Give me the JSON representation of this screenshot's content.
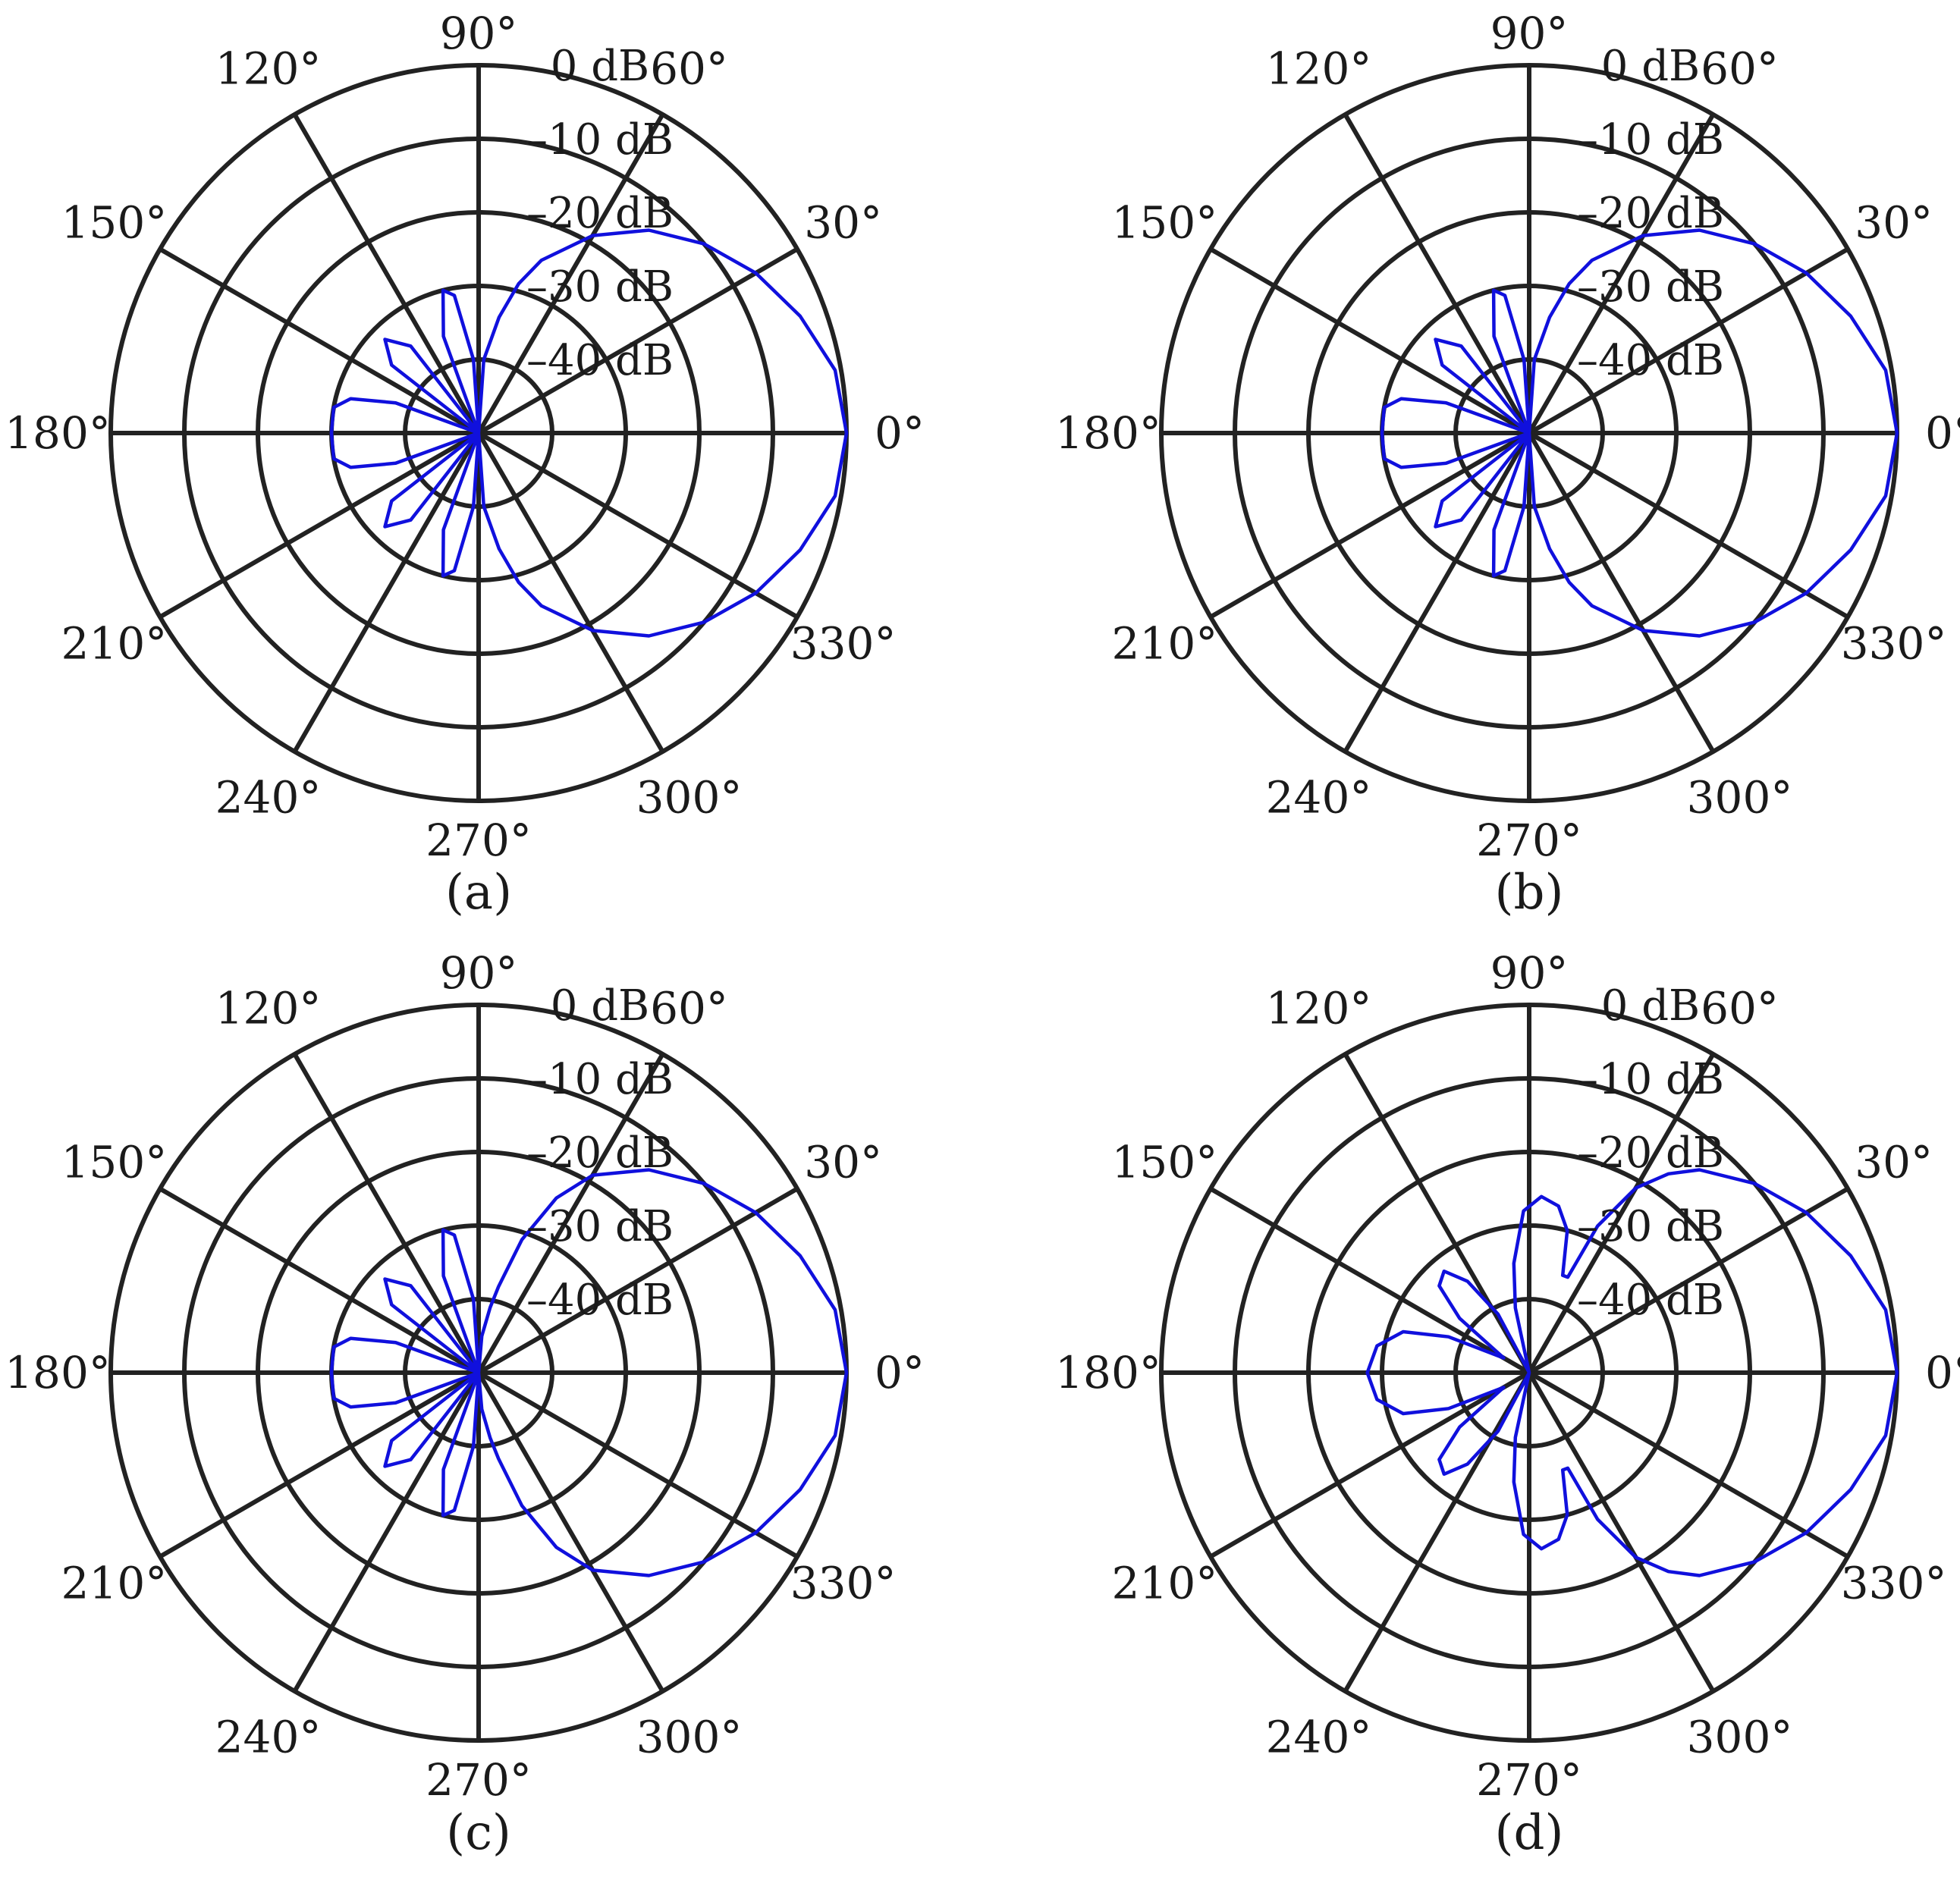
{
  "chart_data": [
    {
      "type": "line",
      "coordinate_system": "polar",
      "caption": "(a)",
      "angle_ticks": [
        "0°",
        "30°",
        "60°",
        "90°",
        "120°",
        "150°",
        "180°",
        "210°",
        "240°",
        "270°",
        "300°",
        "330°"
      ],
      "radial_ticks": [
        "0 dB",
        "–10 dB",
        "–20 dB",
        "–30 dB",
        "–40 dB"
      ],
      "rlim_db": [
        -50,
        0
      ],
      "grid": true,
      "series": [
        {
          "color": "#1010dd",
          "theta_deg": [
            0,
            10,
            20,
            30,
            40,
            50,
            60,
            70,
            75,
            80,
            86,
            90,
            94,
            100,
            104,
            110,
            120,
            128,
            135,
            142,
            150,
            160,
            165,
            170,
            180,
            190,
            195,
            200,
            210,
            218,
            225,
            232,
            240,
            250,
            256,
            260,
            266,
            270,
            274,
            280,
            285,
            290,
            300,
            310,
            320,
            330,
            340,
            350,
            360
          ],
          "r_db": [
            0,
            -0.8,
            -3.5,
            -6.5,
            -10,
            -14,
            -19,
            -25,
            -29,
            -34,
            -40,
            -50,
            -40,
            -31,
            -30,
            -36,
            -50,
            -35,
            -32,
            -35,
            -50,
            -38,
            -32,
            -30,
            -30,
            -30,
            -32,
            -38,
            -50,
            -35,
            -32,
            -35,
            -50,
            -36,
            -30,
            -31,
            -40,
            -50,
            -40,
            -34,
            -29,
            -25,
            -19,
            -14,
            -10,
            -6.5,
            -3.5,
            -0.8,
            0
          ]
        }
      ]
    },
    {
      "type": "line",
      "coordinate_system": "polar",
      "caption": "(b)",
      "angle_ticks": [
        "0°",
        "30°",
        "60°",
        "90°",
        "120°",
        "150°",
        "180°",
        "210°",
        "240°",
        "270°",
        "300°",
        "330°"
      ],
      "radial_ticks": [
        "0 dB",
        "–10 dB",
        "–20 dB",
        "–30 dB",
        "–40 dB"
      ],
      "rlim_db": [
        -50,
        0
      ],
      "grid": true,
      "series": [
        {
          "color": "#1010dd",
          "theta_deg": [
            0,
            10,
            20,
            30,
            40,
            50,
            60,
            70,
            75,
            80,
            86,
            90,
            94,
            100,
            104,
            110,
            120,
            128,
            135,
            142,
            150,
            160,
            165,
            170,
            180,
            190,
            195,
            200,
            210,
            218,
            225,
            232,
            240,
            250,
            256,
            260,
            266,
            270,
            274,
            280,
            285,
            290,
            300,
            310,
            320,
            330,
            340,
            350,
            360
          ],
          "r_db": [
            0,
            -0.8,
            -3.5,
            -6.5,
            -10,
            -14,
            -19,
            -25,
            -29,
            -34,
            -40,
            -50,
            -40,
            -31,
            -30,
            -36,
            -50,
            -35,
            -32,
            -35,
            -50,
            -38,
            -32,
            -30,
            -30,
            -30,
            -32,
            -38,
            -50,
            -35,
            -32,
            -35,
            -50,
            -36,
            -30,
            -31,
            -40,
            -50,
            -40,
            -34,
            -29,
            -25,
            -19,
            -14,
            -10,
            -6.5,
            -3.5,
            -0.8,
            0
          ]
        }
      ]
    },
    {
      "type": "line",
      "coordinate_system": "polar",
      "caption": "(c)",
      "angle_ticks": [
        "0°",
        "30°",
        "60°",
        "90°",
        "120°",
        "150°",
        "180°",
        "210°",
        "240°",
        "270°",
        "300°",
        "330°"
      ],
      "radial_ticks": [
        "0 dB",
        "–10 dB",
        "–20 dB",
        "–30 dB",
        "–40 dB"
      ],
      "rlim_db": [
        -50,
        0
      ],
      "grid": true,
      "series": [
        {
          "color": "#1010dd",
          "theta_deg": [
            0,
            10,
            20,
            30,
            40,
            50,
            60,
            66,
            72,
            77,
            80,
            85,
            90,
            94,
            100,
            104,
            110,
            120,
            128,
            135,
            142,
            150,
            160,
            165,
            170,
            180,
            190,
            195,
            200,
            210,
            218,
            225,
            232,
            240,
            250,
            256,
            260,
            266,
            270,
            275,
            280,
            283,
            288,
            294,
            300,
            310,
            320,
            330,
            340,
            350,
            360
          ],
          "r_db": [
            0,
            -0.8,
            -3.5,
            -6.5,
            -10,
            -14,
            -19,
            -24,
            -31,
            -38,
            -41,
            -45,
            -50,
            -40,
            -31,
            -30,
            -36,
            -50,
            -35,
            -32,
            -35,
            -50,
            -38,
            -32,
            -30,
            -30,
            -30,
            -32,
            -38,
            -50,
            -35,
            -32,
            -35,
            -50,
            -36,
            -30,
            -31,
            -40,
            -50,
            -45,
            -41,
            -38,
            -31,
            -24,
            -19,
            -14,
            -10,
            -6.5,
            -3.5,
            -0.8,
            0
          ]
        }
      ]
    },
    {
      "type": "line",
      "coordinate_system": "polar",
      "caption": "(d)",
      "angle_ticks": [
        "0°",
        "30°",
        "60°",
        "90°",
        "120°",
        "150°",
        "180°",
        "210°",
        "240°",
        "270°",
        "300°",
        "330°"
      ],
      "radial_ticks": [
        "0 dB",
        "–10 dB",
        "–20 dB",
        "–30 dB",
        "–40 dB"
      ],
      "rlim_db": [
        -50,
        0
      ],
      "grid": true,
      "series": [
        {
          "color": "#1010dd",
          "theta_deg": [
            0,
            10,
            20,
            30,
            40,
            50,
            55,
            60,
            65,
            68,
            71,
            75,
            80,
            86,
            92,
            98,
            102,
            110,
            118,
            124,
            130,
            136,
            142,
            150,
            156,
            162,
            170,
            180,
            190,
            198,
            204,
            210,
            218,
            224,
            230,
            236,
            242,
            250,
            258,
            262,
            268,
            274,
            280,
            285,
            289,
            292,
            295,
            300,
            305,
            310,
            320,
            330,
            340,
            350,
            360
          ],
          "r_db": [
            0,
            -0.8,
            -3.5,
            -6.5,
            -10,
            -14,
            -17,
            -21,
            -28,
            -36,
            -36,
            -30,
            -27,
            -26,
            -28,
            -35,
            -41,
            -50,
            -41,
            -35,
            -32,
            -33,
            -38,
            -46,
            -38,
            -32,
            -29,
            -28,
            -29,
            -32,
            -38,
            -46,
            -38,
            -33,
            -32,
            -35,
            -41,
            -50,
            -41,
            -35,
            -28,
            -26,
            -27,
            -30,
            -36,
            -36,
            -28,
            -21,
            -17,
            -14,
            -10,
            -6.5,
            -3.5,
            -0.8,
            0
          ]
        }
      ]
    }
  ]
}
